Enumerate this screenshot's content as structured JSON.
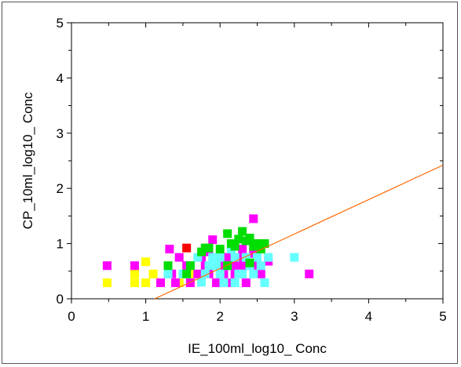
{
  "chart_data": {
    "type": "scatter",
    "xlabel": "IE_100ml_log10_ Conc",
    "ylabel": "CP_10ml_log10_ Conc",
    "xlim": [
      0,
      5
    ],
    "ylim": [
      0,
      5
    ],
    "xticks": [
      "0",
      "1",
      "2",
      "3",
      "4",
      "5"
    ],
    "yticks": [
      "0",
      "1",
      "2",
      "3",
      "4",
      "5"
    ],
    "grid": false,
    "line": {
      "color": "#ff6600",
      "points": [
        [
          1.12,
          0
        ],
        [
          5,
          2.42
        ]
      ]
    },
    "series": [
      {
        "color": "#ffff00",
        "points": [
          [
            0.48,
            0.29
          ],
          [
            0.85,
            0.29
          ],
          [
            0.85,
            0.45
          ],
          [
            1.0,
            0.29
          ],
          [
            1.0,
            0.67
          ],
          [
            1.1,
            0.45
          ],
          [
            1.2,
            0.29
          ],
          [
            1.45,
            0.29
          ],
          [
            1.62,
            0.45
          ]
        ]
      },
      {
        "color": "#ff00ff",
        "points": [
          [
            0.48,
            0.6
          ],
          [
            0.85,
            0.6
          ],
          [
            1.2,
            0.29
          ],
          [
            1.35,
            0.45
          ],
          [
            1.4,
            0.29
          ],
          [
            1.32,
            0.9
          ],
          [
            1.45,
            0.75
          ],
          [
            1.55,
            0.6
          ],
          [
            1.6,
            0.29
          ],
          [
            1.7,
            0.45
          ],
          [
            1.75,
            0.75
          ],
          [
            1.8,
            0.6
          ],
          [
            1.85,
            0.45
          ],
          [
            1.85,
            0.85
          ],
          [
            1.9,
            1.07
          ],
          [
            1.95,
            0.29
          ],
          [
            2.0,
            0.6
          ],
          [
            2.05,
            0.45
          ],
          [
            2.1,
            0.75
          ],
          [
            2.15,
            0.29
          ],
          [
            2.2,
            0.6
          ],
          [
            2.2,
            0.45
          ],
          [
            2.25,
            0.75
          ],
          [
            2.3,
            0.9
          ],
          [
            2.35,
            0.29
          ],
          [
            2.4,
            0.6
          ],
          [
            2.45,
            1.45
          ],
          [
            2.45,
            0.82
          ],
          [
            2.5,
            0.6
          ],
          [
            2.55,
            0.45
          ],
          [
            2.65,
            0.68
          ],
          [
            3.2,
            0.45
          ],
          [
            2.0,
            0.29
          ],
          [
            2.3,
            0.6
          ]
        ]
      },
      {
        "color": "#66ffff",
        "points": [
          [
            1.3,
            0.45
          ],
          [
            1.5,
            0.45
          ],
          [
            1.6,
            0.6
          ],
          [
            1.7,
            0.75
          ],
          [
            1.75,
            0.3
          ],
          [
            1.8,
            0.45
          ],
          [
            1.85,
            0.6
          ],
          [
            1.9,
            0.75
          ],
          [
            1.95,
            0.6
          ],
          [
            2.0,
            0.45
          ],
          [
            2.0,
            0.75
          ],
          [
            2.05,
            0.29
          ],
          [
            2.1,
            0.6
          ],
          [
            2.15,
            0.9
          ],
          [
            2.2,
            0.75
          ],
          [
            2.2,
            0.29
          ],
          [
            2.25,
            0.45
          ],
          [
            2.3,
            0.45
          ],
          [
            2.35,
            0.75
          ],
          [
            2.4,
            0.6
          ],
          [
            2.45,
            0.45
          ],
          [
            2.5,
            0.75
          ],
          [
            2.55,
            0.6
          ],
          [
            2.6,
            0.29
          ],
          [
            2.65,
            0.75
          ],
          [
            3.0,
            0.75
          ]
        ]
      },
      {
        "color": "#00dd00",
        "points": [
          [
            1.3,
            0.6
          ],
          [
            1.55,
            0.45
          ],
          [
            1.6,
            0.6
          ],
          [
            1.75,
            0.85
          ],
          [
            1.8,
            0.92
          ],
          [
            1.85,
            0.92
          ],
          [
            2.0,
            0.9
          ],
          [
            2.1,
            0.6
          ],
          [
            2.1,
            1.18
          ],
          [
            2.15,
            1.0
          ],
          [
            2.2,
            0.95
          ],
          [
            2.25,
            1.08
          ],
          [
            2.3,
            1.22
          ],
          [
            2.35,
            1.05
          ],
          [
            2.4,
            1.1
          ],
          [
            2.45,
            0.95
          ],
          [
            2.5,
            1.0
          ],
          [
            2.55,
            0.9
          ],
          [
            2.6,
            1.0
          ],
          [
            2.4,
            0.65
          ]
        ]
      },
      {
        "color": "#ff0000",
        "points": [
          [
            1.55,
            0.92
          ]
        ]
      }
    ]
  }
}
